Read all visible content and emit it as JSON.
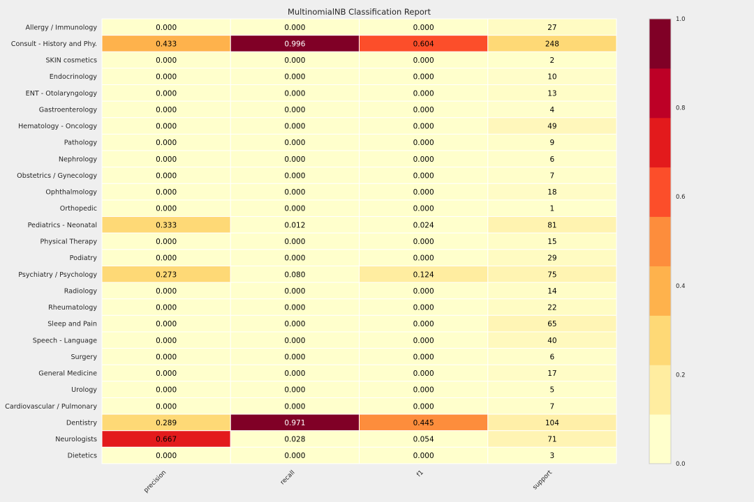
{
  "chart_data": {
    "type": "heatmap",
    "title": "MultinomialNB Classification Report",
    "columns": [
      "precision",
      "recall",
      "f1",
      "support"
    ],
    "rows": [
      {
        "label": "Allergy / Immunology",
        "precision": 0.0,
        "recall": 0.0,
        "f1": 0.0,
        "support": 27
      },
      {
        "label": "Consult - History and Phy.",
        "precision": 0.433,
        "recall": 0.996,
        "f1": 0.604,
        "support": 248
      },
      {
        "label": "SKIN cosmetics",
        "precision": 0.0,
        "recall": 0.0,
        "f1": 0.0,
        "support": 2
      },
      {
        "label": "Endocrinology",
        "precision": 0.0,
        "recall": 0.0,
        "f1": 0.0,
        "support": 10
      },
      {
        "label": "ENT - Otolaryngology",
        "precision": 0.0,
        "recall": 0.0,
        "f1": 0.0,
        "support": 13
      },
      {
        "label": "Gastroenterology",
        "precision": 0.0,
        "recall": 0.0,
        "f1": 0.0,
        "support": 4
      },
      {
        "label": "Hematology - Oncology",
        "precision": 0.0,
        "recall": 0.0,
        "f1": 0.0,
        "support": 49
      },
      {
        "label": "Pathology",
        "precision": 0.0,
        "recall": 0.0,
        "f1": 0.0,
        "support": 9
      },
      {
        "label": "Nephrology",
        "precision": 0.0,
        "recall": 0.0,
        "f1": 0.0,
        "support": 6
      },
      {
        "label": "Obstetrics / Gynecology",
        "precision": 0.0,
        "recall": 0.0,
        "f1": 0.0,
        "support": 7
      },
      {
        "label": "Ophthalmology",
        "precision": 0.0,
        "recall": 0.0,
        "f1": 0.0,
        "support": 18
      },
      {
        "label": "Orthopedic",
        "precision": 0.0,
        "recall": 0.0,
        "f1": 0.0,
        "support": 1
      },
      {
        "label": "Pediatrics - Neonatal",
        "precision": 0.333,
        "recall": 0.012,
        "f1": 0.024,
        "support": 81
      },
      {
        "label": "Physical Therapy",
        "precision": 0.0,
        "recall": 0.0,
        "f1": 0.0,
        "support": 15
      },
      {
        "label": "Podiatry",
        "precision": 0.0,
        "recall": 0.0,
        "f1": 0.0,
        "support": 29
      },
      {
        "label": "Psychiatry / Psychology",
        "precision": 0.273,
        "recall": 0.08,
        "f1": 0.124,
        "support": 75
      },
      {
        "label": "Radiology",
        "precision": 0.0,
        "recall": 0.0,
        "f1": 0.0,
        "support": 14
      },
      {
        "label": "Rheumatology",
        "precision": 0.0,
        "recall": 0.0,
        "f1": 0.0,
        "support": 22
      },
      {
        "label": "Sleep and Pain",
        "precision": 0.0,
        "recall": 0.0,
        "f1": 0.0,
        "support": 65
      },
      {
        "label": "Speech - Language",
        "precision": 0.0,
        "recall": 0.0,
        "f1": 0.0,
        "support": 40
      },
      {
        "label": "Surgery",
        "precision": 0.0,
        "recall": 0.0,
        "f1": 0.0,
        "support": 6
      },
      {
        "label": "General Medicine",
        "precision": 0.0,
        "recall": 0.0,
        "f1": 0.0,
        "support": 17
      },
      {
        "label": "Urology",
        "precision": 0.0,
        "recall": 0.0,
        "f1": 0.0,
        "support": 5
      },
      {
        "label": "Cardiovascular / Pulmonary",
        "precision": 0.0,
        "recall": 0.0,
        "f1": 0.0,
        "support": 7
      },
      {
        "label": "Dentistry",
        "precision": 0.289,
        "recall": 0.971,
        "f1": 0.445,
        "support": 104
      },
      {
        "label": "Neurologists",
        "precision": 0.667,
        "recall": 0.028,
        "f1": 0.054,
        "support": 71
      },
      {
        "label": "Dietetics",
        "precision": 0.0,
        "recall": 0.0,
        "f1": 0.0,
        "support": 3
      }
    ],
    "colorbar": {
      "range": [
        0.0,
        1.0
      ],
      "ticks": [
        "0.0",
        "0.2",
        "0.4",
        "0.6",
        "0.8",
        "1.0"
      ],
      "colors": [
        "#ffffcc",
        "#ffeda0",
        "#fed976",
        "#feb24c",
        "#fd8d3c",
        "#fc4e2a",
        "#e31a1c",
        "#bd0026",
        "#800026"
      ]
    },
    "support_color": {
      "low": "#ffffcc",
      "high": "#fed976",
      "max": 248
    },
    "grid": false,
    "background": "#efefef"
  }
}
